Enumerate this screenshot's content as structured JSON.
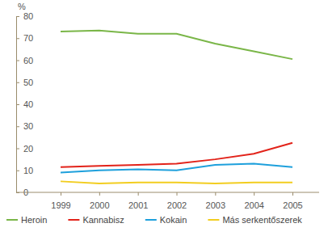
{
  "chart_data": {
    "type": "line",
    "y_label": "%",
    "categories": [
      "1999",
      "2000",
      "2001",
      "2002",
      "2003",
      "2004",
      "2005"
    ],
    "series": [
      {
        "name": "Heroin",
        "color": "#7ab648",
        "values": [
          73,
          73.5,
          72,
          72,
          67.5,
          64,
          60.5
        ]
      },
      {
        "name": "Kannabisz",
        "color": "#e2231a",
        "values": [
          11.5,
          12,
          12.5,
          13,
          15,
          17.5,
          22.5
        ]
      },
      {
        "name": "Kokain",
        "color": "#1ea0dc",
        "values": [
          9,
          10,
          10.5,
          10,
          12.5,
          13,
          11.5
        ]
      },
      {
        "name": "Más serkentőszerek",
        "color": "#f2cd1f",
        "values": [
          5,
          4,
          4.5,
          4.5,
          4,
          4.5,
          4.5
        ]
      }
    ],
    "ylim": [
      0,
      80
    ],
    "yticks": [
      0,
      10,
      20,
      30,
      40,
      50,
      60,
      70,
      80
    ],
    "grid": false,
    "legend": "bottom"
  }
}
